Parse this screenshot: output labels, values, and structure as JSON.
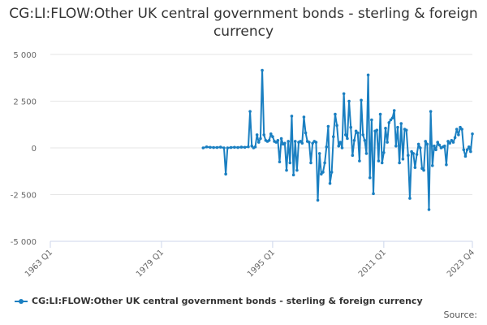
{
  "title": "CG:LI:FLOW:Other UK central government bonds - sterling & foreign currency",
  "legend_label": "CG:LI:FLOW:Other UK central government bonds - sterling & foreign currency",
  "source_label": "Source:",
  "colors": {
    "series": "#1a7fc1",
    "grid": "#e6e6e6",
    "axis": "#ccd6eb"
  },
  "chart_data": {
    "type": "line",
    "title": "CG:LI:FLOW:Other UK central government bonds - sterling & foreign currency",
    "xlabel": "",
    "ylabel": "",
    "ylim": [
      -5000,
      5000
    ],
    "xlim": [
      "1963 Q1",
      "2023 Q4"
    ],
    "y_ticks": [
      "5 000",
      "2 500",
      "0",
      "-2 500",
      "-5 000"
    ],
    "x_ticks": [
      "1963 Q1",
      "1979 Q1",
      "1995 Q1",
      "2011 Q1",
      "2023 Q4"
    ],
    "grid": true,
    "legend_position": "bottom",
    "series": [
      {
        "name": "CG:LI:FLOW:Other UK central government bonds - sterling & foreign currency",
        "points": [
          [
            "1985 Q1",
            0
          ],
          [
            "1985 Q3",
            50
          ],
          [
            "1986 Q1",
            30
          ],
          [
            "1986 Q3",
            20
          ],
          [
            "1987 Q1",
            20
          ],
          [
            "1987 Q3",
            40
          ],
          [
            "1988 Q1",
            0
          ],
          [
            "1988 Q2",
            -1400
          ],
          [
            "1988 Q3",
            0
          ],
          [
            "1989 Q1",
            20
          ],
          [
            "1989 Q3",
            30
          ],
          [
            "1990 Q1",
            20
          ],
          [
            "1990 Q3",
            40
          ],
          [
            "1991 Q1",
            30
          ],
          [
            "1991 Q3",
            60
          ],
          [
            "1991 Q4",
            1950
          ],
          [
            "1992 Q1",
            100
          ],
          [
            "1992 Q2",
            0
          ],
          [
            "1992 Q3",
            50
          ],
          [
            "1992 Q4",
            700
          ],
          [
            "1993 Q1",
            300
          ],
          [
            "1993 Q2",
            500
          ],
          [
            "1993 Q3",
            4150
          ],
          [
            "1993 Q4",
            700
          ],
          [
            "1994 Q1",
            400
          ],
          [
            "1994 Q2",
            350
          ],
          [
            "1994 Q3",
            400
          ],
          [
            "1994 Q4",
            750
          ],
          [
            "1995 Q1",
            600
          ],
          [
            "1995 Q2",
            350
          ],
          [
            "1995 Q3",
            300
          ],
          [
            "1995 Q4",
            400
          ],
          [
            "1996 Q1",
            -750
          ],
          [
            "1996 Q2",
            500
          ],
          [
            "1996 Q3",
            200
          ],
          [
            "1996 Q4",
            250
          ],
          [
            "1997 Q1",
            -1200
          ],
          [
            "1997 Q2",
            350
          ],
          [
            "1997 Q3",
            -800
          ],
          [
            "1997 Q4",
            1700
          ],
          [
            "1998 Q1",
            -1450
          ],
          [
            "1998 Q2",
            350
          ],
          [
            "1998 Q3",
            -1200
          ],
          [
            "1998 Q4",
            300
          ],
          [
            "1999 Q1",
            350
          ],
          [
            "1999 Q2",
            250
          ],
          [
            "1999 Q3",
            1650
          ],
          [
            "1999 Q4",
            800
          ],
          [
            "2000 Q1",
            350
          ],
          [
            "2000 Q2",
            300
          ],
          [
            "2000 Q3",
            -800
          ],
          [
            "2000 Q4",
            250
          ],
          [
            "2001 Q1",
            350
          ],
          [
            "2001 Q2",
            300
          ],
          [
            "2001 Q3",
            -2800
          ],
          [
            "2001 Q4",
            -300
          ],
          [
            "2002 Q1",
            -1400
          ],
          [
            "2002 Q2",
            -1300
          ],
          [
            "2002 Q3",
            -800
          ],
          [
            "2002 Q4",
            50
          ],
          [
            "2003 Q1",
            1150
          ],
          [
            "2003 Q2",
            -1900
          ],
          [
            "2003 Q3",
            -1300
          ],
          [
            "2003 Q4",
            600
          ],
          [
            "2004 Q1",
            1800
          ],
          [
            "2004 Q2",
            1200
          ],
          [
            "2004 Q3",
            100
          ],
          [
            "2004 Q4",
            300
          ],
          [
            "2005 Q1",
            0
          ],
          [
            "2005 Q2",
            2900
          ],
          [
            "2005 Q3",
            700
          ],
          [
            "2005 Q4",
            500
          ],
          [
            "2006 Q1",
            2500
          ],
          [
            "2006 Q2",
            1100
          ],
          [
            "2006 Q3",
            -400
          ],
          [
            "2006 Q4",
            400
          ],
          [
            "2007 Q1",
            900
          ],
          [
            "2007 Q2",
            800
          ],
          [
            "2007 Q3",
            -700
          ],
          [
            "2007 Q4",
            2550
          ],
          [
            "2008 Q1",
            700
          ],
          [
            "2008 Q2",
            400
          ],
          [
            "2008 Q3",
            -300
          ],
          [
            "2008 Q4",
            3900
          ],
          [
            "2009 Q1",
            -1600
          ],
          [
            "2009 Q2",
            1500
          ],
          [
            "2009 Q3",
            -2450
          ],
          [
            "2009 Q4",
            900
          ],
          [
            "2010 Q1",
            950
          ],
          [
            "2010 Q2",
            -700
          ],
          [
            "2010 Q3",
            1800
          ],
          [
            "2010 Q4",
            -800
          ],
          [
            "2011 Q1",
            -250
          ],
          [
            "2011 Q2",
            1050
          ],
          [
            "2011 Q3",
            300
          ],
          [
            "2011 Q4",
            1350
          ],
          [
            "2012 Q1",
            1500
          ],
          [
            "2012 Q2",
            1600
          ],
          [
            "2012 Q3",
            2000
          ],
          [
            "2012 Q4",
            100
          ],
          [
            "2013 Q1",
            1100
          ],
          [
            "2013 Q2",
            -800
          ],
          [
            "2013 Q3",
            1300
          ],
          [
            "2013 Q4",
            -600
          ],
          [
            "2014 Q1",
            1000
          ],
          [
            "2014 Q2",
            950
          ],
          [
            "2014 Q3",
            -400
          ],
          [
            "2014 Q4",
            -2700
          ],
          [
            "2015 Q1",
            -200
          ],
          [
            "2015 Q2",
            -300
          ],
          [
            "2015 Q3",
            -1050
          ],
          [
            "2015 Q4",
            -350
          ],
          [
            "2016 Q1",
            200
          ],
          [
            "2016 Q2",
            0
          ],
          [
            "2016 Q3",
            -1100
          ],
          [
            "2016 Q4",
            -1200
          ],
          [
            "2017 Q1",
            350
          ],
          [
            "2017 Q2",
            200
          ],
          [
            "2017 Q3",
            -3300
          ],
          [
            "2017 Q4",
            1950
          ],
          [
            "2018 Q1",
            -950
          ],
          [
            "2018 Q2",
            100
          ],
          [
            "2018 Q3",
            -100
          ],
          [
            "2018 Q4",
            300
          ],
          [
            "2019 Q1",
            150
          ],
          [
            "2019 Q2",
            0
          ],
          [
            "2019 Q3",
            50
          ],
          [
            "2019 Q4",
            100
          ],
          [
            "2020 Q1",
            -900
          ],
          [
            "2020 Q2",
            350
          ],
          [
            "2020 Q3",
            250
          ],
          [
            "2020 Q4",
            400
          ],
          [
            "2021 Q1",
            300
          ],
          [
            "2021 Q2",
            550
          ],
          [
            "2021 Q3",
            1000
          ],
          [
            "2021 Q4",
            700
          ],
          [
            "2022 Q1",
            1100
          ],
          [
            "2022 Q2",
            1000
          ],
          [
            "2022 Q3",
            -100
          ],
          [
            "2022 Q4",
            -450
          ],
          [
            "2023 Q1",
            -100
          ],
          [
            "2023 Q2",
            50
          ],
          [
            "2023 Q3",
            -200
          ],
          [
            "2023 Q4",
            750
          ]
        ]
      }
    ]
  }
}
